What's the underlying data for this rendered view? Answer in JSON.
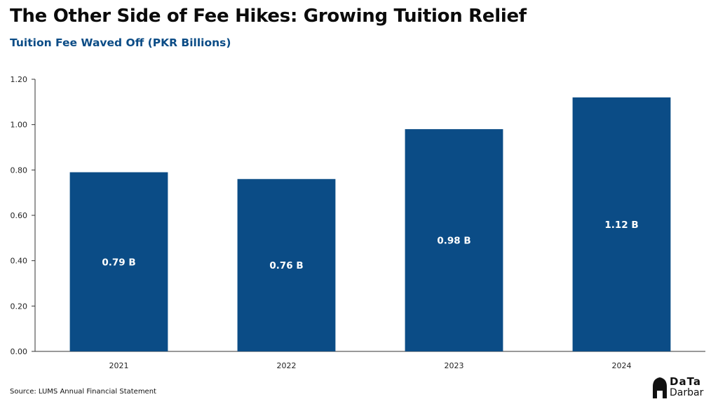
{
  "header": {
    "title": "The Other Side of Fee Hikes: Growing Tuition Relief",
    "subtitle": "Tuition Fee Waved Off (PKR Billions)"
  },
  "footer": {
    "source": "Source: LUMS Annual Financial Statement",
    "logo_top": "DaTa",
    "logo_bottom": "Darbar"
  },
  "colors": {
    "bar": "#0b4c86",
    "subtitle": "#0b4c86",
    "axis": "#333333"
  },
  "chart_data": {
    "type": "bar",
    "categories": [
      "2021",
      "2022",
      "2023",
      "2024"
    ],
    "values": [
      0.79,
      0.76,
      0.98,
      1.12
    ],
    "data_labels": [
      "0.79 B",
      "0.76 B",
      "0.98 B",
      "1.12 B"
    ],
    "title": "The Other Side of Fee Hikes: Growing Tuition Relief",
    "subtitle": "Tuition Fee Waved Off (PKR Billions)",
    "ylim": [
      0,
      1.2
    ],
    "yticks": [
      "0.00",
      "0.20",
      "0.40",
      "0.60",
      "0.80",
      "1.00",
      "1.20"
    ],
    "grid": false,
    "legend": "none"
  }
}
